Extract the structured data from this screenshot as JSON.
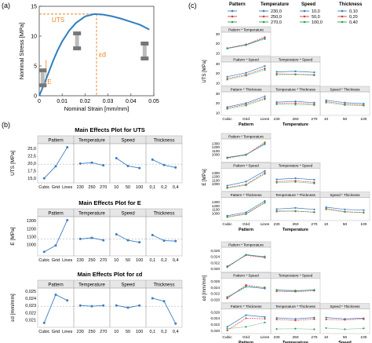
{
  "panel_labels": {
    "a": "(a)",
    "b": "(b)",
    "c": "(c)"
  },
  "colors": {
    "curve": "#2f7fc1",
    "line": "#3a7dc4",
    "accent": "#e8821e",
    "ref": "#b5b5b5",
    "header": "#e6e6e6",
    "grid": "#d9d9d9"
  },
  "panel_a": {
    "annotations": {
      "uts": "UTS",
      "e": "E",
      "ed": "εd"
    }
  },
  "legend": {
    "headers": [
      "Pattern",
      "Temperature",
      "Speed",
      "Thickness"
    ],
    "rows": [
      [
        "",
        "230,0",
        "10,0",
        "0,10"
      ],
      [
        "",
        "250,0",
        "50,0",
        "0,20"
      ],
      [
        "",
        "270,0",
        "100,0",
        "0,40"
      ]
    ],
    "colors": [
      "#2f7fc1",
      "#d63b3b",
      "#2e9e4f"
    ]
  },
  "chart_data": [
    {
      "type": "line",
      "title": "",
      "xlabel": "Nominal Strain [mm/mm]",
      "ylabel": "Nominal Stress [MPa]",
      "xlim": [
        0,
        0.05
      ],
      "ylim": [
        0,
        15
      ],
      "xticks": [
        "0",
        "0.01",
        "0.02",
        "0.03",
        "0.04",
        "0.05"
      ],
      "yticks": [
        "0",
        "5",
        "10",
        "15"
      ],
      "series": [
        {
          "x": [
            0,
            0.002,
            0.004,
            0.006,
            0.008,
            0.01,
            0.013,
            0.016,
            0.02,
            0.024,
            0.028,
            0.032,
            0.036,
            0.04,
            0.044,
            0.048
          ],
          "y": [
            0,
            1.8,
            3.8,
            5.8,
            7.6,
            9.1,
            10.9,
            12.2,
            13.3,
            13.7,
            13.6,
            13.3,
            12.9,
            12.4,
            11.9,
            11.1
          ]
        }
      ],
      "marks": {
        "uts_y": 13.7,
        "ed_x": 0.025
      }
    },
    {
      "type": "line",
      "title": "Main Effects Plot for UTS",
      "ylabel": "UTS [MPa]",
      "ylim": [
        14,
        26
      ],
      "yticks": [
        "15,0",
        "17,5",
        "20,0",
        "22,5",
        "25,0"
      ],
      "ref": 19.7,
      "groups": [
        {
          "name": "Pattern",
          "levels": [
            "Cubic",
            "Grid",
            "Lines"
          ],
          "values": [
            15.0,
            19.0,
            25.3
          ]
        },
        {
          "name": "Temperature",
          "levels": [
            "230",
            "250",
            "270"
          ],
          "values": [
            19.9,
            20.2,
            19.3
          ]
        },
        {
          "name": "Speed",
          "levels": [
            "10",
            "50",
            "100"
          ],
          "values": [
            21.7,
            19.1,
            18.4
          ]
        },
        {
          "name": "Thickness",
          "levels": [
            "0,1",
            "0,2",
            "0,4"
          ],
          "values": [
            21.2,
            19.4,
            18.6
          ]
        }
      ]
    },
    {
      "type": "line",
      "title": "Main Effects Plot for E",
      "ylabel": "E [MPa]",
      "ylim": [
        880,
        1330
      ],
      "yticks": [
        "1000",
        "1100",
        "1200",
        "1300"
      ],
      "ref": 1070,
      "groups": [
        {
          "name": "Pattern",
          "levels": [
            "Cubic",
            "Grid",
            "Lines"
          ],
          "values": [
            910,
            990,
            1305
          ]
        },
        {
          "name": "Temperature",
          "levels": [
            "230",
            "250",
            "270"
          ],
          "values": [
            1072,
            1085,
            1055
          ]
        },
        {
          "name": "Speed",
          "levels": [
            "10",
            "50",
            "100"
          ],
          "values": [
            1130,
            1055,
            1030
          ]
        },
        {
          "name": "Thickness",
          "levels": [
            "0,1",
            "0,2",
            "0,4"
          ],
          "values": [
            1120,
            1050,
            1045
          ]
        }
      ]
    },
    {
      "type": "line",
      "title": "Main Effects Plot for εd",
      "ylabel": "εd [mm/mm]",
      "ylim": [
        0.0202,
        0.0252
      ],
      "yticks": [
        "0,021",
        "0,022",
        "0,023",
        "0,024",
        "0,025"
      ],
      "ref": 0.0229,
      "groups": [
        {
          "name": "Pattern",
          "levels": [
            "Cubic",
            "Grid",
            "Lines"
          ],
          "values": [
            0.0206,
            0.0245,
            0.0237
          ]
        },
        {
          "name": "Temperature",
          "levels": [
            "230",
            "250",
            "270"
          ],
          "values": [
            0.023,
            0.0229,
            0.023
          ]
        },
        {
          "name": "Speed",
          "levels": [
            "10",
            "50",
            "100"
          ],
          "values": [
            0.023,
            0.0227,
            0.023
          ]
        },
        {
          "name": "Thickness",
          "levels": [
            "0,1",
            "0,2",
            "0,4"
          ],
          "values": [
            0.024,
            0.0236,
            0.0205
          ]
        }
      ]
    },
    {
      "type": "line",
      "title": "",
      "ylabel": "UTS [MPa]",
      "ylim": [
        9,
        30
      ],
      "yticks": [
        "10",
        "20",
        "30"
      ],
      "xlabels": [
        "Pattern",
        "Temperature",
        ""
      ],
      "rows": [
        [
          {
            "title": "Pattern * Temperature",
            "levels": [
              "Cubic",
              "Grid",
              "Lines"
            ],
            "series": [
              [
                15,
                18.5,
                25.5
              ],
              [
                15.2,
                19,
                26.5
              ],
              [
                14.8,
                18.3,
                24.5
              ]
            ]
          }
        ],
        [
          {
            "title": "Pattern * Speed",
            "levels": [
              "Cubic",
              "Grid",
              "Lines"
            ],
            "series": [
              [
                16.5,
                20.5,
                27.5
              ],
              [
                14.5,
                18.5,
                25
              ],
              [
                13.5,
                17.5,
                23.5
              ]
            ]
          },
          {
            "title": "Temperature * Speed",
            "levels": [
              "230",
              "250",
              "270"
            ],
            "series": [
              [
                21.5,
                22,
                21
              ],
              [
                19.5,
                19,
                18.5
              ],
              [
                18.5,
                18.8,
                18
              ]
            ]
          }
        ],
        [
          {
            "title": "Pattern * Thickness",
            "levels": [
              "Cubic",
              "Grid",
              "Lines"
            ],
            "series": [
              [
                16,
                20,
                27
              ],
              [
                14.8,
                18.8,
                25
              ],
              [
                14,
                17.5,
                24
              ]
            ]
          },
          {
            "title": "Temperature * Thickness",
            "levels": [
              "230",
              "250",
              "270"
            ],
            "series": [
              [
                21,
                21.8,
                20.5
              ],
              [
                19.5,
                20,
                19
              ],
              [
                18.8,
                18.5,
                18
              ]
            ]
          },
          {
            "title": "Speed * Thickness",
            "levels": [
              "10",
              "50",
              "100"
            ],
            "series": [
              [
                23,
                20.5,
                19.5
              ],
              [
                21.5,
                19,
                18
              ],
              [
                20.5,
                18,
                17.5
              ]
            ]
          }
        ]
      ],
      "bottom_ticks": [
        "Cubic",
        "Grid",
        "Lines",
        "230",
        "250",
        "270",
        "10",
        "50",
        "100"
      ]
    },
    {
      "type": "line",
      "title": "",
      "ylabel": "E [MPa]",
      "ylim": [
        840,
        1380
      ],
      "yticks": [
        "1000",
        "1100",
        "1200",
        "1300"
      ],
      "xlabels": [
        "Pattern",
        "Temperature",
        ""
      ],
      "rows": [
        [
          {
            "title": "Pattern * Temperature",
            "levels": [
              "Cubic",
              "Grid",
              "Lines"
            ],
            "series": [
              [
                920,
                1000,
                1280
              ],
              [
                900,
                990,
                1330
              ],
              [
                910,
                985,
                1300
              ]
            ]
          }
        ],
        [
          {
            "title": "Pattern * Speed",
            "levels": [
              "Cubic",
              "Grid",
              "Lines"
            ],
            "series": [
              [
                950,
                1060,
                1350
              ],
              [
                900,
                980,
                1300
              ],
              [
                880,
                960,
                1270
              ]
            ]
          },
          {
            "title": "Temperature * Speed",
            "levels": [
              "230",
              "250",
              "270"
            ],
            "series": [
              [
                1120,
                1150,
                1110
              ],
              [
                1060,
                1080,
                1040
              ],
              [
                1030,
                1050,
                1010
              ]
            ]
          }
        ],
        [
          {
            "title": "Pattern * Thickness",
            "levels": [
              "Cubic",
              "Grid",
              "Lines"
            ],
            "series": [
              [
                930,
                1020,
                1330
              ],
              [
                900,
                980,
                1290
              ],
              [
                890,
                970,
                1280
              ]
            ]
          },
          {
            "title": "Temperature * Thickness",
            "levels": [
              "230",
              "250",
              "270"
            ],
            "series": [
              [
                1110,
                1140,
                1100
              ],
              [
                1060,
                1050,
                1030
              ],
              [
                1040,
                1060,
                1020
              ]
            ]
          },
          {
            "title": "Speed * Thickness",
            "levels": [
              "10",
              "50",
              "100"
            ],
            "series": [
              [
                1160,
                1100,
                1080
              ],
              [
                1120,
                1040,
                1010
              ],
              [
                1100,
                1030,
                1020
              ]
            ]
          }
        ]
      ],
      "bottom_ticks": [
        "Cubic",
        "Grid",
        "Lines",
        "230",
        "250",
        "270",
        "10",
        "50",
        "100"
      ]
    },
    {
      "type": "line",
      "title": "",
      "ylabel": "εd [mm/mm]",
      "ylim": [
        0.0195,
        0.0265
      ],
      "yticks": [
        "0,020",
        "0,022",
        "0,024",
        "0,026"
      ],
      "xlabels": [
        "Pattern",
        "Temperature",
        "Speed"
      ],
      "rows": [
        [
          {
            "title": "Pattern * Temperature",
            "levels": [
              "Cubic",
              "Grid",
              "Lines"
            ],
            "series": [
              [
                0.0205,
                0.0246,
                0.0238
              ],
              [
                0.0208,
                0.0244,
                0.0236
              ],
              [
                0.0206,
                0.0245,
                0.024
              ]
            ]
          }
        ],
        [
          {
            "title": "Pattern * Speed",
            "levels": [
              "Cubic",
              "Grid",
              "Lines"
            ],
            "series": [
              [
                0.0207,
                0.0242,
                0.0236
              ],
              [
                0.0204,
                0.0248,
                0.0238
              ],
              [
                0.0209,
                0.0243,
                0.024
              ]
            ]
          },
          {
            "title": "Temperature * Speed",
            "levels": [
              "230",
              "250",
              "270"
            ],
            "series": [
              [
                0.0231,
                0.0228,
                0.0232
              ],
              [
                0.0227,
                0.0226,
                0.0229
              ],
              [
                0.0232,
                0.023,
                0.0231
              ]
            ]
          }
        ],
        [
          {
            "title": "Pattern * Thickness",
            "levels": [
              "Cubic",
              "Grid",
              "Lines"
            ],
            "series": [
              [
                0.0212,
                0.025,
                0.0244
              ],
              [
                0.02,
                0.024,
                0.0238
              ],
              [
                0.0206,
                0.0212,
                0.0226
              ]
            ]
          },
          {
            "title": "Temperature * Thickness",
            "levels": [
              "230",
              "250",
              "270"
            ],
            "series": [
              [
                0.0241,
                0.0238,
                0.0242
              ],
              [
                0.0236,
                0.0233,
                0.0237
              ],
              [
                0.0205,
                0.0206,
                0.0204
              ]
            ]
          },
          {
            "title": "Speed * Thickness",
            "levels": [
              "10",
              "50",
              "100"
            ],
            "series": [
              [
                0.0242,
                0.0238,
                0.024
              ],
              [
                0.0236,
                0.0235,
                0.0237
              ],
              [
                0.0208,
                0.0204,
                0.0207
              ]
            ]
          }
        ]
      ],
      "bottom_ticks": [
        "Cubic",
        "Grid",
        "Lines",
        "230",
        "250",
        "270",
        "10",
        "50",
        "100"
      ]
    }
  ]
}
